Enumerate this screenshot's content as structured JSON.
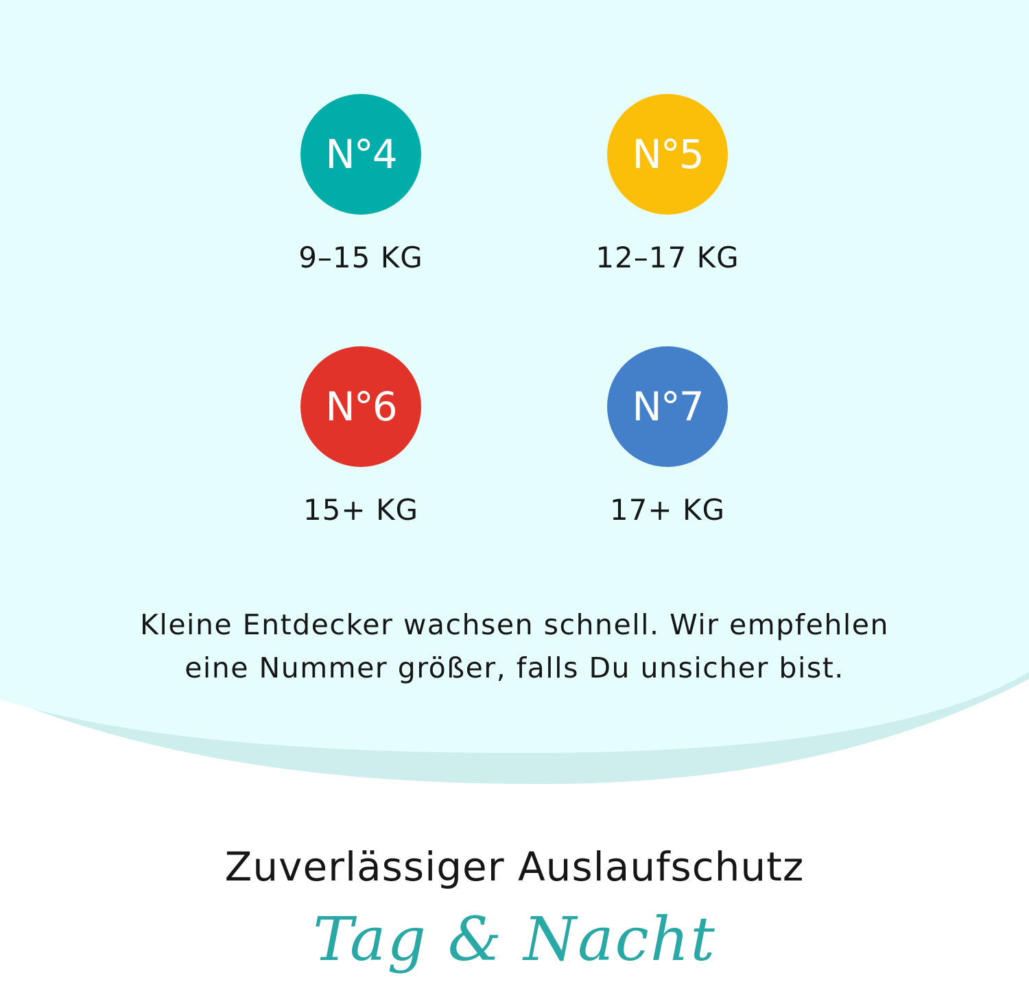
{
  "colors": {
    "background": "#e6fdfd",
    "band": "#cdeeed",
    "script": "#2aa8a5"
  },
  "sizes": [
    {
      "label": "N°4",
      "weight": "9–15 KG",
      "color": "#00ada9"
    },
    {
      "label": "N°5",
      "weight": "12–17 KG",
      "color": "#fbbf0a"
    },
    {
      "label": "N°6",
      "weight": "15+ KG",
      "color": "#e2332a"
    },
    {
      "label": "N°7",
      "weight": "17+ KG",
      "color": "#4380c9"
    }
  ],
  "note": {
    "line1": "Kleine Entdecker wachsen schnell. Wir empfehlen",
    "line2": "eine Nummer größer, falls Du unsicher bist."
  },
  "headline": "Zuverlässiger Auslaufschutz",
  "script_text": "Tag & Nacht"
}
